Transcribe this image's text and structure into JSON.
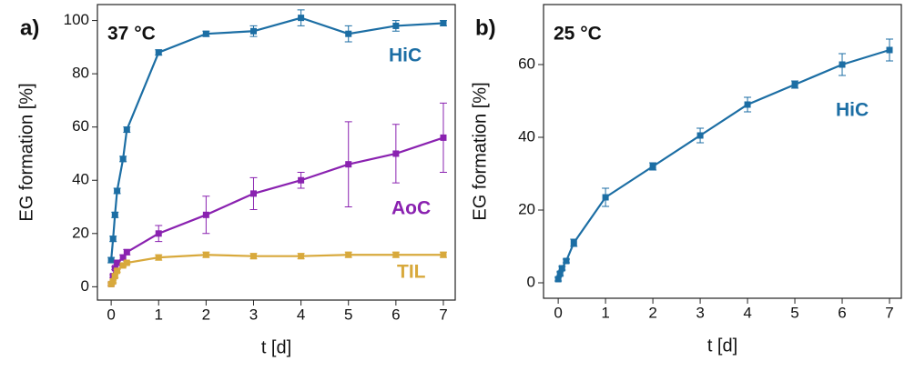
{
  "chart_data": [
    {
      "type": "line",
      "panel_label": "a)",
      "annotation": "37 °C",
      "x_label": "t [d]",
      "y_label": "EG formation [%]",
      "xlim": [
        -0.29,
        7.25
      ],
      "xticks": [
        0,
        1,
        2,
        3,
        4,
        5,
        6,
        7
      ],
      "ylim": [
        -5,
        106
      ],
      "yticks": [
        0,
        20,
        40,
        60,
        80,
        100
      ],
      "series": [
        {
          "name": "HiC",
          "color": "#1c6ea4",
          "x": [
            0,
            0.04,
            0.08,
            0.125,
            0.25,
            0.33,
            1,
            2,
            3,
            4,
            5,
            6,
            7
          ],
          "values": [
            10,
            18,
            27,
            36,
            48,
            59,
            88,
            95,
            96,
            101,
            95,
            98,
            99
          ],
          "errors": [
            1,
            1,
            1,
            1,
            1,
            1,
            1,
            1,
            2,
            3,
            3,
            2,
            1
          ]
        },
        {
          "name": "AoC",
          "color": "#8a22b0",
          "x": [
            0,
            0.04,
            0.08,
            0.125,
            0.25,
            0.33,
            1,
            2,
            3,
            4,
            5,
            6,
            7
          ],
          "values": [
            1,
            4,
            7,
            9,
            11,
            13,
            20,
            27,
            35,
            40,
            46,
            50,
            56
          ],
          "errors": [
            0.5,
            0.5,
            0.5,
            0.5,
            1,
            1,
            3,
            7,
            6,
            3,
            16,
            11,
            13
          ]
        },
        {
          "name": "TIL",
          "color": "#d8a93c",
          "x": [
            0,
            0.04,
            0.08,
            0.125,
            0.25,
            0.33,
            1,
            2,
            3,
            4,
            5,
            6,
            7
          ],
          "values": [
            1,
            2,
            4,
            6,
            8,
            9,
            11,
            12,
            11.5,
            11.5,
            12,
            12,
            12
          ],
          "errors": [
            0.5,
            0.5,
            0.5,
            0.5,
            0.5,
            0.5,
            1,
            1,
            1,
            1,
            1,
            1,
            1
          ]
        }
      ]
    },
    {
      "type": "line",
      "panel_label": "b)",
      "annotation": "25 °C",
      "x_label": "t [d]",
      "y_label": "EG formation [%]",
      "xlim": [
        -0.31,
        7.25
      ],
      "xticks": [
        0,
        1,
        2,
        3,
        4,
        5,
        6,
        7
      ],
      "ylim": [
        -4.25,
        76.5
      ],
      "yticks": [
        0,
        20,
        40,
        60
      ],
      "series": [
        {
          "name": "HiC",
          "color": "#1c6ea4",
          "x": [
            0,
            0.04,
            0.08,
            0.17,
            0.33,
            1,
            2,
            3,
            4,
            5,
            6,
            7
          ],
          "values": [
            1,
            2.5,
            4,
            6,
            11,
            23.5,
            32,
            40.5,
            49,
            54.5,
            60,
            64
          ],
          "errors": [
            0.5,
            0.5,
            0.5,
            0.5,
            1,
            2.5,
            1,
            2,
            2,
            1,
            3,
            3
          ]
        }
      ]
    }
  ]
}
